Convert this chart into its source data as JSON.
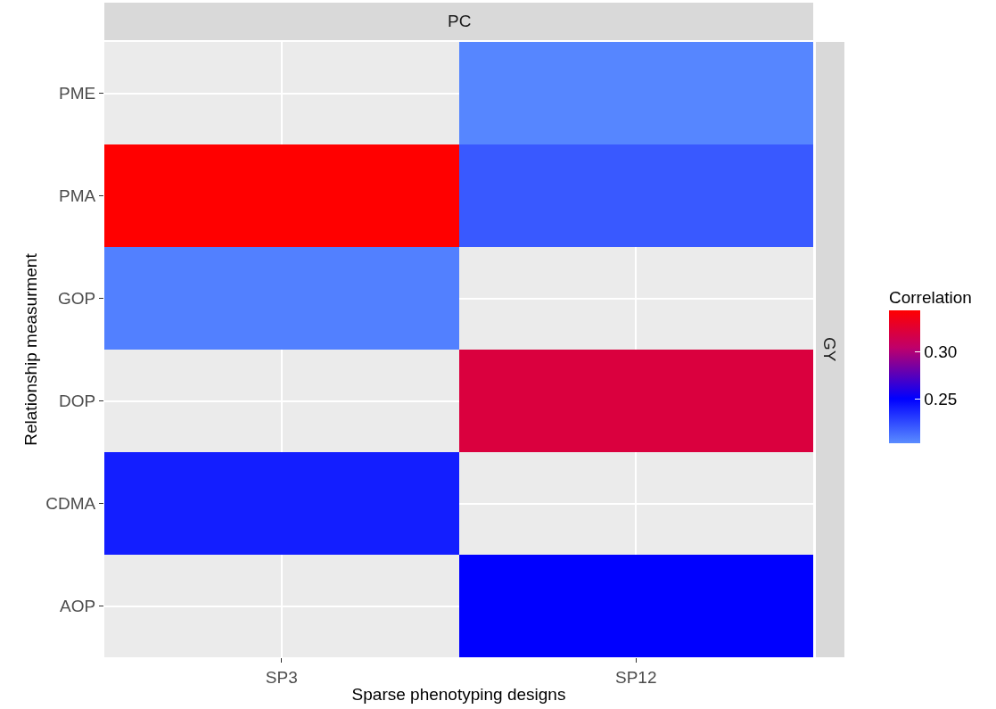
{
  "chart_data": {
    "type": "heatmap",
    "xlabel": "Sparse phenotyping designs",
    "ylabel": "Relationship measurment",
    "clabel": "Correlation",
    "categories": [
      "SP3",
      "SP12"
    ],
    "y_categories": [
      "PME",
      "PMA",
      "GOP",
      "DOP",
      "CDMA",
      "AOP"
    ],
    "cells": [
      [
        null,
        0.205
      ],
      [
        0.343,
        0.22
      ],
      [
        0.207,
        null
      ],
      [
        null,
        0.32
      ],
      [
        0.24,
        null
      ],
      [
        null,
        0.25
      ]
    ],
    "clim": [
      0.203,
      0.343
    ],
    "cticks": [
      {
        "value": 0.25,
        "label": "0.25"
      },
      {
        "value": 0.3,
        "label": "0.30"
      }
    ],
    "annotations": [
      "PC",
      "GY"
    ],
    "grid": true
  }
}
